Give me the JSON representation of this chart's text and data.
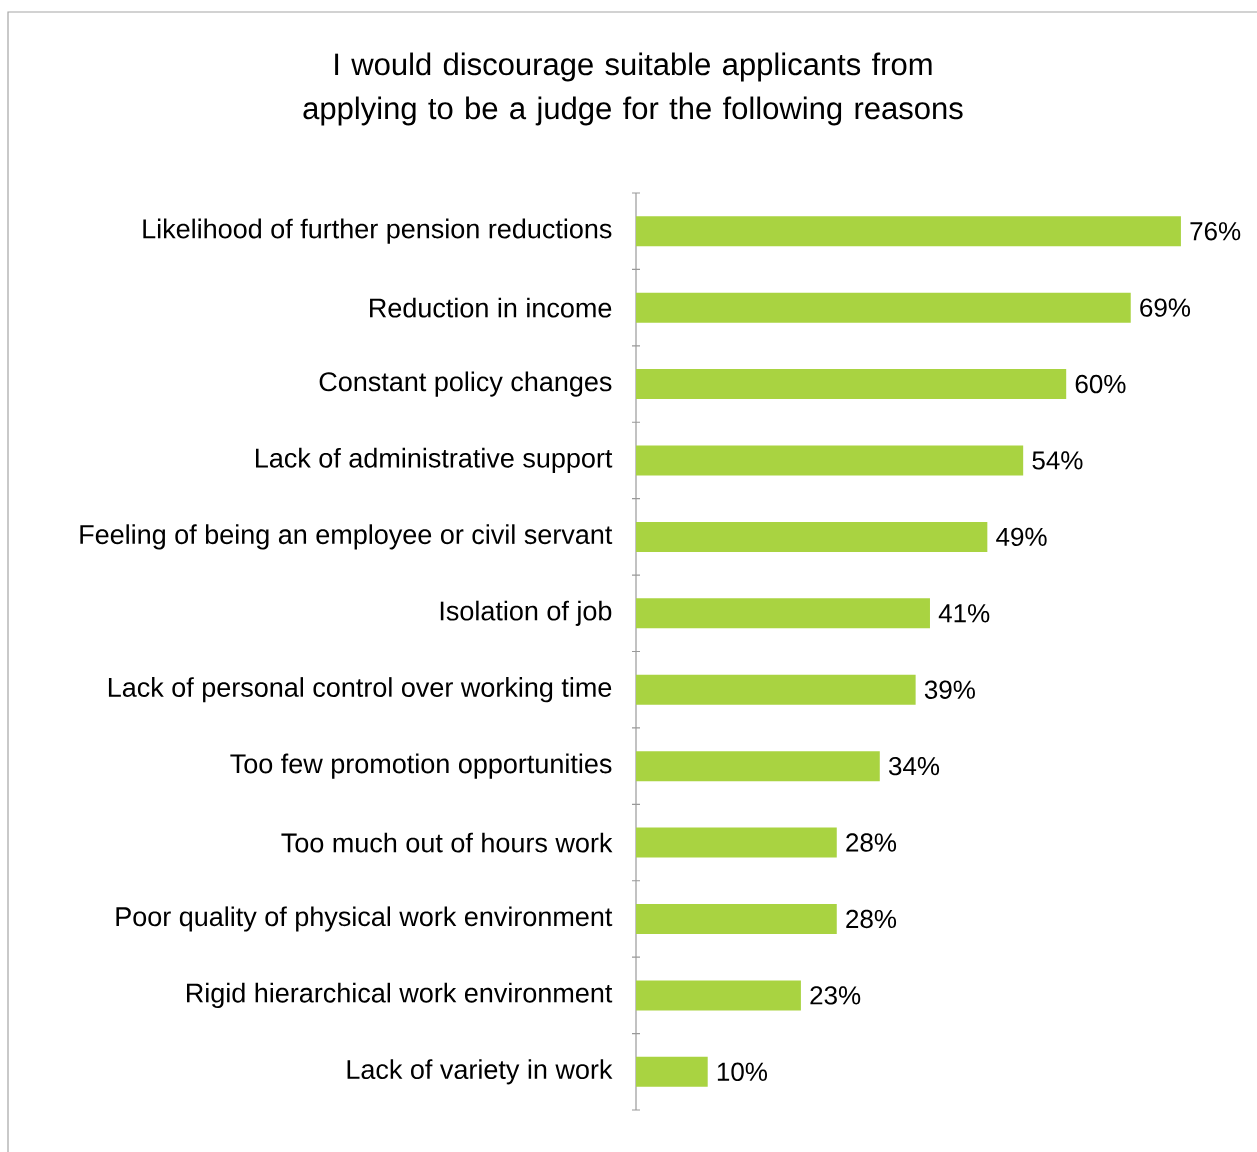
{
  "chart_data": {
    "type": "bar",
    "orientation": "horizontal",
    "title": "I would discourage suitable applicants from applying to be a judge for the following reasons",
    "categories": [
      "Likelihood of further pension reductions",
      "Reduction in income",
      "Constant policy changes",
      "Lack of administrative support",
      "Feeling of being an employee or civil servant",
      "Isolation of job",
      "Lack of personal control over working time",
      "Too few promotion opportunities",
      "Too much out of hours work",
      "Poor quality of physical work environment",
      "Rigid hierarchical work environment",
      "Lack of variety in work"
    ],
    "values": [
      76,
      69,
      60,
      54,
      49,
      41,
      39,
      34,
      28,
      28,
      23,
      10
    ],
    "value_labels": [
      "76%",
      "69%",
      "60%",
      "54%",
      "49%",
      "41%",
      "39%",
      "34%",
      "28%",
      "28%",
      "23%",
      "10%"
    ],
    "color": "#a9d341"
  }
}
